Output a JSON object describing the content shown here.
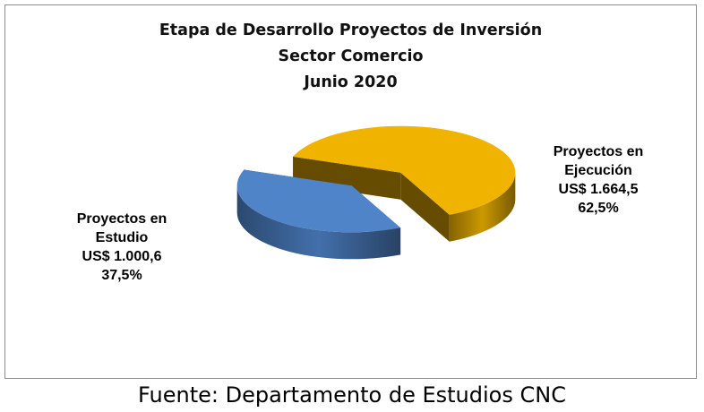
{
  "chart_data": {
    "type": "pie",
    "title_lines": [
      "Etapa de Desarrollo Proyectos de Inversión",
      "Sector Comercio",
      "Junio 2020"
    ],
    "three_d": true,
    "exploded": true,
    "slices": [
      {
        "name_lines": [
          "Proyectos en",
          "Ejecución"
        ],
        "value_label": "US$ 1.664,5",
        "percent_label": "62,5%",
        "value": 1664.5,
        "percent": 62.5,
        "color": "#F0B400"
      },
      {
        "name_lines": [
          "Proyectos en",
          "Estudio"
        ],
        "value_label": "US$ 1.000,6",
        "percent_label": "37,5%",
        "value": 1000.6,
        "percent": 37.5,
        "color": "#4F84C9"
      }
    ]
  },
  "footer": {
    "source": "Fuente: Departamento de Estudios CNC"
  }
}
